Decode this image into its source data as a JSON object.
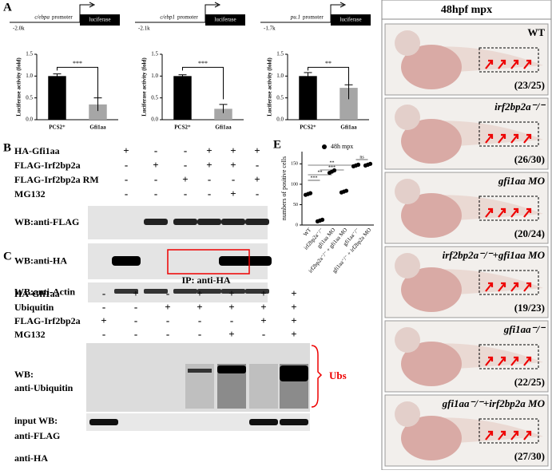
{
  "panel_a": {
    "label": "A",
    "charts": [
      {
        "promoter": "c/ebpa",
        "promoter_text": "promoter",
        "position": "-2.0k",
        "reporter": "luciferase",
        "ylabel": "Luciferase activity (fold)",
        "categories": [
          "PCS2⁺",
          "Gfi1aa"
        ],
        "values": [
          1.0,
          0.35
        ],
        "errors": [
          0.05,
          0.15
        ],
        "colors": [
          "#000000",
          "#a6a6a6"
        ],
        "ylim": [
          0,
          1.5
        ],
        "yticks": [
          {
            "value": 0,
            "label": "0.0"
          },
          {
            "value": 0.5,
            "label": "0.5"
          },
          {
            "value": 1,
            "label": "1.0"
          },
          {
            "value": 1.5,
            "label": "1.5"
          }
        ],
        "significance": "***"
      },
      {
        "promoter": "c/ebp1",
        "promoter_text": "promoter",
        "position": "-2.1k",
        "reporter": "luciferase",
        "ylabel": "Luciferase activity (fold)",
        "categories": [
          "PCS2⁺",
          "Gfi1aa"
        ],
        "values": [
          1.0,
          0.25
        ],
        "errors": [
          0.03,
          0.1
        ],
        "colors": [
          "#000000",
          "#a6a6a6"
        ],
        "ylim": [
          0,
          1.5
        ],
        "yticks": [
          {
            "value": 0,
            "label": "0.0"
          },
          {
            "value": 0.5,
            "label": "0.5"
          },
          {
            "value": 1,
            "label": "1.0"
          },
          {
            "value": 1.5,
            "label": "1.5"
          }
        ],
        "significance": "***"
      },
      {
        "promoter": "pu.1",
        "promoter_text": "promoter",
        "position": "-1.7k",
        "reporter": "luciferase",
        "ylabel": "Luciferase activity (fold)",
        "categories": [
          "PCS2⁺",
          "Gfi1aa"
        ],
        "values": [
          1.0,
          0.73
        ],
        "errors": [
          0.08,
          0.07
        ],
        "colors": [
          "#000000",
          "#a6a6a6"
        ],
        "ylim": [
          0,
          1.5
        ],
        "yticks": [
          {
            "value": 0,
            "label": "0.0"
          },
          {
            "value": 0.5,
            "label": "0.5"
          },
          {
            "value": 1,
            "label": "1.0"
          },
          {
            "value": 1.5,
            "label": "1.5"
          }
        ],
        "significance": "**"
      }
    ]
  },
  "panel_b": {
    "label": "B",
    "rows": [
      {
        "label": "HA-Gfi1aa",
        "marks": [
          "+",
          "-",
          "-",
          "+",
          "+",
          "+"
        ]
      },
      {
        "label": "FLAG-Irf2bp2a",
        "marks": [
          "-",
          "+",
          "-",
          "+",
          "+",
          "-"
        ]
      },
      {
        "label": "FLAG-Irf2bp2a RM",
        "marks": [
          "-",
          "-",
          "+",
          "-",
          "-",
          "+"
        ]
      },
      {
        "label": "MG132",
        "marks": [
          "-",
          "-",
          "-",
          "-",
          "+",
          "-"
        ]
      }
    ],
    "blots": [
      "WB:anti-FLAG",
      "WB:anti-HA",
      "WB:anti-Actin"
    ]
  },
  "panel_c": {
    "label": "C",
    "title": "IP: anti-HA",
    "rows": [
      {
        "label": "HA-Gfi1aa",
        "marks": [
          "-",
          "+",
          "-",
          "+",
          "+",
          "+",
          "+"
        ]
      },
      {
        "label": "Ubiquitin",
        "marks": [
          "-",
          "-",
          "+",
          "+",
          "+",
          "+",
          "+"
        ]
      },
      {
        "label": "FLAG-Irf2bp2a",
        "marks": [
          "+",
          "-",
          "-",
          "-",
          "-",
          "+",
          "+"
        ]
      },
      {
        "label": "MG132",
        "marks": [
          "-",
          "-",
          "-",
          "-",
          "+",
          "-",
          "+"
        ]
      }
    ],
    "blot_labels": [
      "WB:",
      "anti-Ubiquitin"
    ],
    "bracket_label": "Ubs",
    "input_labels": [
      "input WB:",
      "anti-FLAG",
      "anti-HA"
    ]
  },
  "panel_e": {
    "label": "E",
    "legend": "48h mpx",
    "ylabel": "numbers of positive cells",
    "categories": [
      "WT",
      "irf2bp2a⁻/⁻",
      "gfi1aa MO",
      "irf2bp2a⁻/⁻ + gfi1aa MO",
      "gfi1aa⁻/⁻",
      "gfi1aa⁻/⁻ + irf2bp2a MO"
    ],
    "values": [
      [
        74,
        76,
        78
      ],
      [
        9,
        11,
        13
      ],
      [
        128,
        131,
        134
      ],
      [
        80,
        82,
        84
      ],
      [
        144,
        146,
        148
      ],
      [
        146,
        148,
        150
      ]
    ],
    "ylim": [
      0,
      180
    ],
    "yticks": [
      0,
      50,
      100,
      150
    ],
    "significance": [
      "***",
      "**",
      "***",
      "**",
      "ns"
    ]
  },
  "panel_images": {
    "title": "48hpf mpx",
    "images": [
      {
        "label": "WT",
        "count": "(23/25)"
      },
      {
        "label": "irf2bp2a⁻/⁻",
        "count": "(26/30)"
      },
      {
        "label": "gfi1aa MO",
        "count": "(20/24)"
      },
      {
        "label": "irf2bp2a⁻/⁻+gfi1aa MO",
        "count": "(19/23)"
      },
      {
        "label": "gfi1aa⁻/⁻",
        "count": "(22/25)"
      },
      {
        "label": "gfi1aa⁻/⁻+irf2bp2a MO",
        "count": "(27/30)"
      }
    ]
  }
}
